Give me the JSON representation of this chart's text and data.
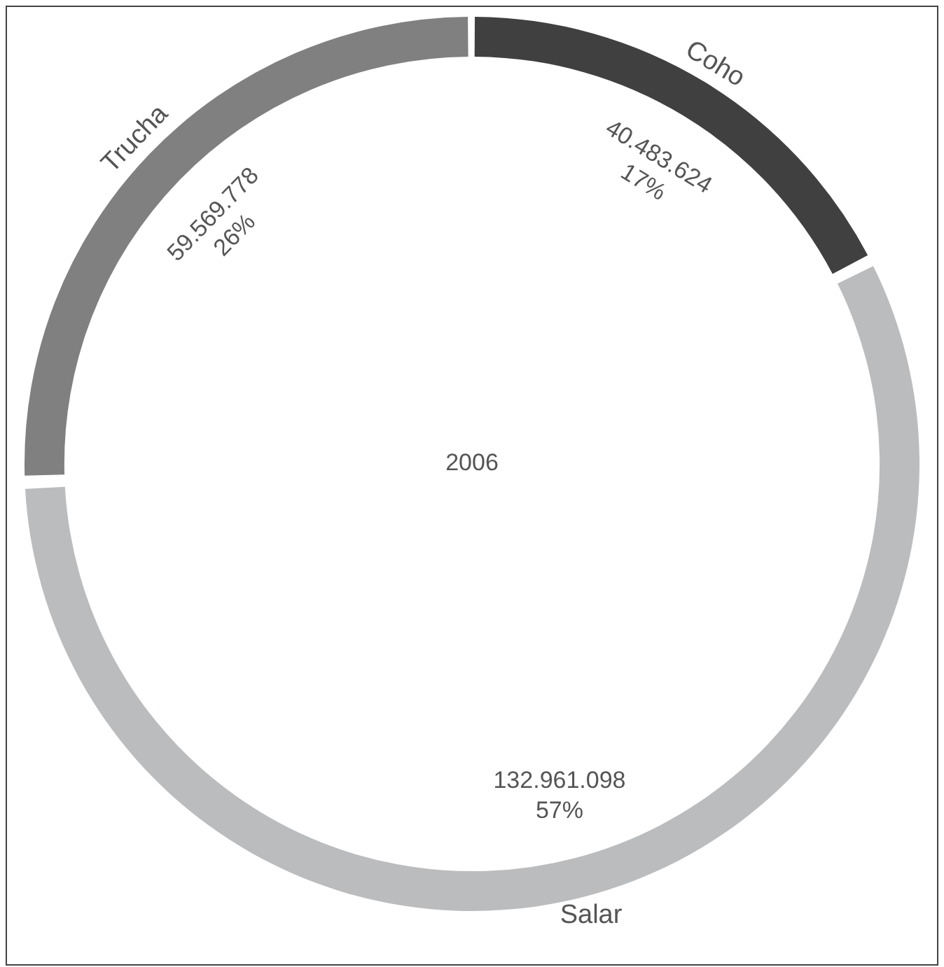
{
  "chart_data": {
    "type": "donut",
    "title": "2006",
    "categories": [
      "Coho",
      "Salar",
      "Trucha"
    ],
    "values": [
      40483624,
      132961098,
      59569778
    ],
    "colors": [
      "#404040",
      "#bbbcbe",
      "#808080"
    ],
    "value_labels": [
      "40.483.624\n17%",
      "132.961.098\n57%",
      "59.569.778\n26%"
    ],
    "legend": false
  }
}
